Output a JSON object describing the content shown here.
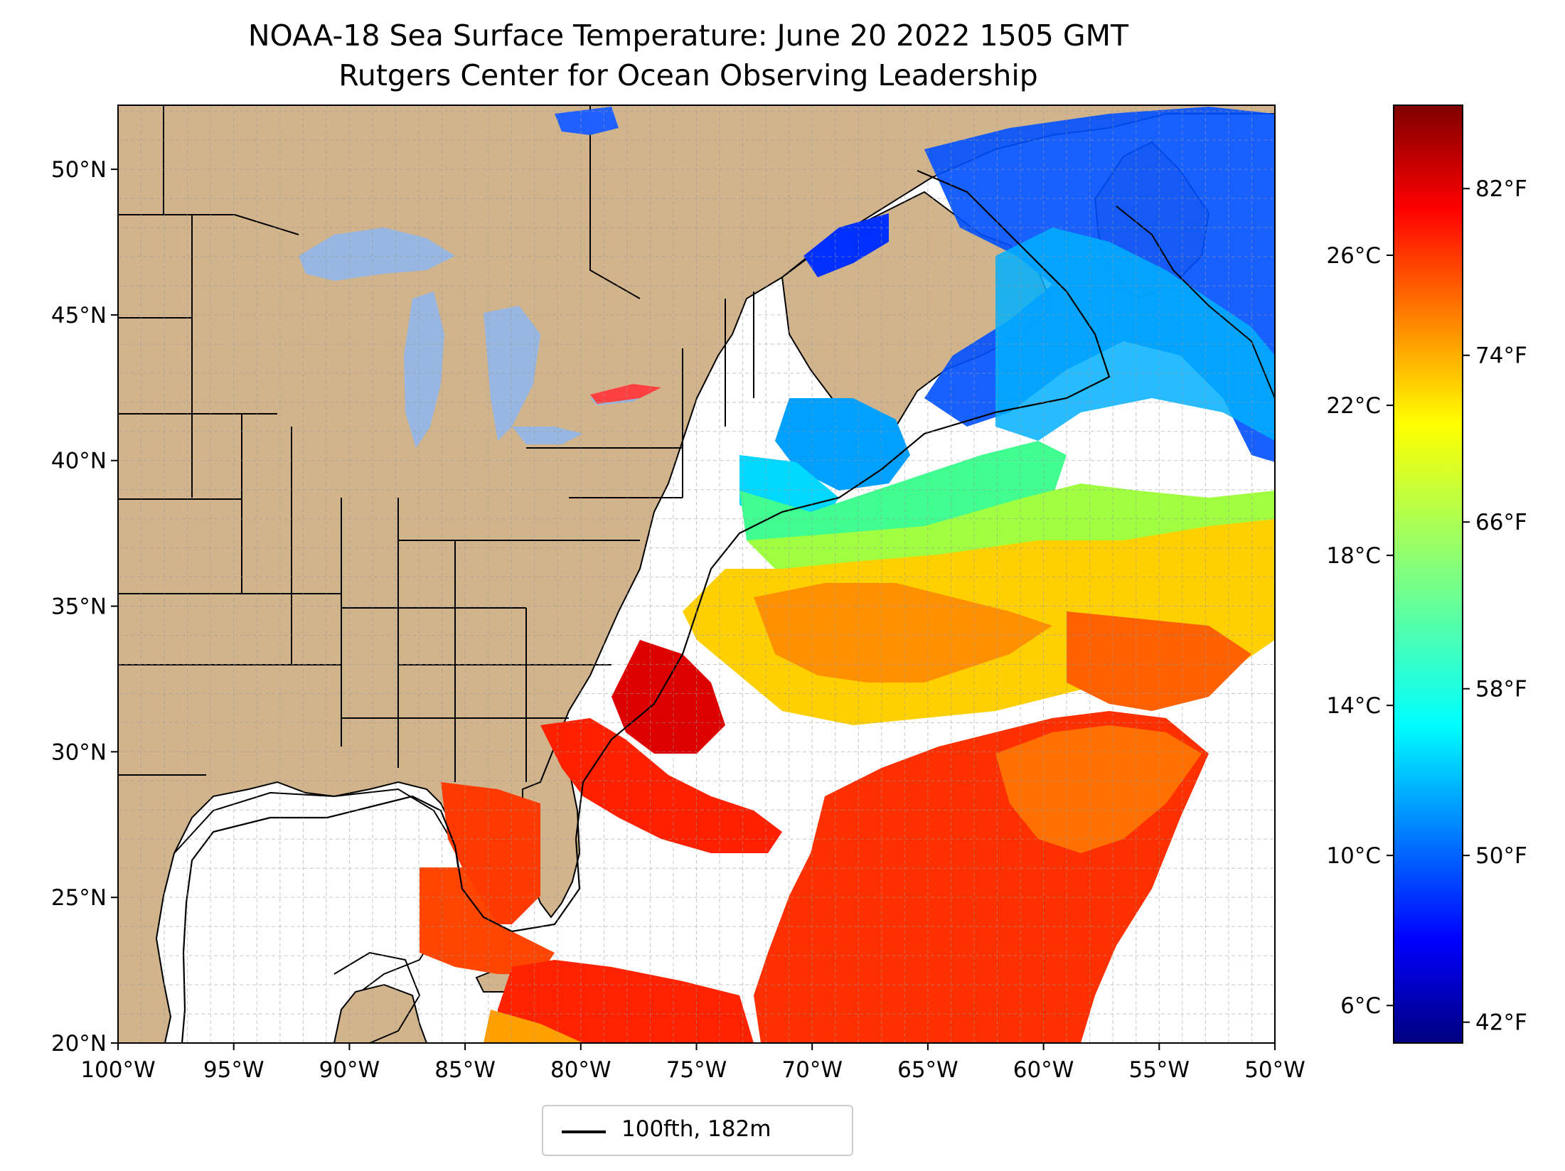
{
  "title": {
    "line1": "NOAA-18 Sea Surface Temperature: June 20 2022 1505 GMT",
    "line2": "Rutgers Center for Ocean Observing Leadership"
  },
  "map": {
    "lon_range": [
      -100,
      -50
    ],
    "lat_range": [
      20,
      52.2
    ],
    "lon_ticks": [
      "100°W",
      "95°W",
      "90°W",
      "85°W",
      "80°W",
      "75°W",
      "70°W",
      "65°W",
      "60°W",
      "55°W",
      "50°W"
    ],
    "lat_ticks": [
      "20°N",
      "25°N",
      "30°N",
      "35°N",
      "40°N",
      "45°N",
      "50°N"
    ],
    "gridlines": true,
    "land_color": "#d2b48c",
    "lake_color": "#97b6e1",
    "ocean_no_data_color": "#ffffff"
  },
  "colorbar": {
    "colormap": "jet",
    "colors": [
      "#00007f",
      "#0000ff",
      "#007fff",
      "#00ffff",
      "#7fff7f",
      "#ffff00",
      "#ff7f00",
      "#ff0000",
      "#7f0000"
    ],
    "celsius_ticks": [
      "6°C",
      "10°C",
      "14°C",
      "18°C",
      "22°C",
      "26°C"
    ],
    "fahrenheit_ticks": [
      "42°F",
      "50°F",
      "58°F",
      "66°F",
      "74°F",
      "82°F"
    ]
  },
  "legend": {
    "label": "100fth, 182m",
    "placement": "bottom-center"
  }
}
